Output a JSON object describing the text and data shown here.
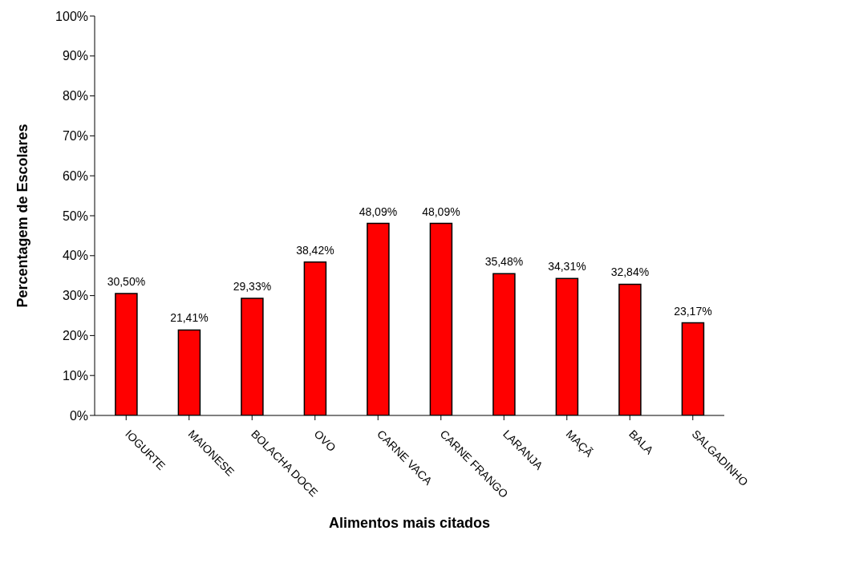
{
  "chart_data": {
    "type": "bar",
    "xlabel": "Alimentos mais citados",
    "ylabel": "Percentagem de Escolares",
    "categories": [
      "IOGURTE",
      "MAIONESE",
      "BOLACHA DOCE",
      "OVO",
      "CARNE VACA",
      "CARNE FRANGO",
      "LARANJA",
      "MAÇÃ",
      "BALA",
      "SALGADINHO"
    ],
    "values": [
      30.5,
      21.41,
      29.33,
      38.42,
      48.09,
      48.09,
      35.48,
      34.31,
      32.84,
      23.17
    ],
    "value_labels": [
      "30,50%",
      "21,41%",
      "29,33%",
      "38,42%",
      "48,09%",
      "48,09%",
      "35,48%",
      "34,31%",
      "32,84%",
      "23,17%"
    ],
    "color": "#ff0000",
    "ylim": [
      0,
      100
    ],
    "yticks": [
      {
        "value": 0,
        "label": "0%"
      },
      {
        "value": 10,
        "label": "10%"
      },
      {
        "value": 20,
        "label": "20%"
      },
      {
        "value": 30,
        "label": "30%"
      },
      {
        "value": 40,
        "label": "40%"
      },
      {
        "value": 50,
        "label": "50%"
      },
      {
        "value": 60,
        "label": "60%"
      },
      {
        "value": 70,
        "label": "70%"
      },
      {
        "value": 80,
        "label": "80%"
      },
      {
        "value": 90,
        "label": "90%"
      },
      {
        "value": 100,
        "label": "100%"
      }
    ],
    "grid": false,
    "legend": false
  }
}
